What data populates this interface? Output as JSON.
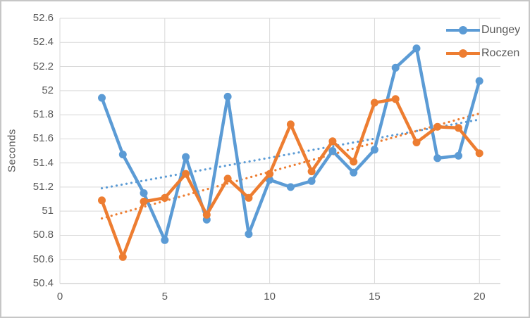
{
  "chart_data": {
    "type": "line",
    "title": "",
    "xlabel": "",
    "ylabel": "Seconds",
    "x": [
      2,
      3,
      4,
      5,
      6,
      7,
      8,
      9,
      10,
      11,
      12,
      13,
      14,
      15,
      16,
      17,
      18,
      19,
      20
    ],
    "series": [
      {
        "name": "Dungey",
        "color": "#5B9BD5",
        "values": [
          51.94,
          51.47,
          51.15,
          50.76,
          51.45,
          50.93,
          51.95,
          50.81,
          51.26,
          51.2,
          51.25,
          51.5,
          51.32,
          51.51,
          52.19,
          52.35,
          51.44,
          51.46,
          52.08
        ]
      },
      {
        "name": "Roczen",
        "color": "#ED7D31",
        "values": [
          51.09,
          50.62,
          51.08,
          51.11,
          51.31,
          50.97,
          51.27,
          51.11,
          51.31,
          51.72,
          51.33,
          51.58,
          51.41,
          51.9,
          51.93,
          51.57,
          51.7,
          51.69,
          51.48
        ]
      }
    ],
    "trendlines": [
      {
        "series": "Dungey",
        "style": "dotted",
        "color": "#5B9BD5",
        "x_start": 2,
        "y_start": 51.19,
        "x_end": 20,
        "y_end": 51.76
      },
      {
        "series": "Roczen",
        "style": "dotted",
        "color": "#ED7D31",
        "x_start": 2,
        "y_start": 50.94,
        "x_end": 20,
        "y_end": 51.81
      }
    ],
    "xlim": [
      0,
      21
    ],
    "ylim": [
      50.4,
      52.6
    ],
    "x_ticks": [
      0,
      5,
      10,
      15,
      20
    ],
    "x_tick_labels": [
      "0",
      "5",
      "10",
      "15",
      "20"
    ],
    "y_ticks": [
      50.4,
      50.6,
      50.8,
      51.0,
      51.2,
      51.4,
      51.6,
      51.8,
      52.0,
      52.2,
      52.4,
      52.6
    ],
    "y_tick_labels": [
      "50.4",
      "50.6",
      "50.8",
      "51",
      "51.2",
      "51.4",
      "51.6",
      "51.8",
      "52",
      "52.2",
      "52.4",
      "52.6"
    ],
    "grid": true,
    "legend_position": "top-right"
  },
  "colors": {
    "gridline": "#D9D9D9",
    "axis_line": "#BFBFBF",
    "tick_text": "#595959",
    "legend_text": "#595959",
    "background": "#FFFFFF",
    "frame_border": "#C6C6C6"
  }
}
